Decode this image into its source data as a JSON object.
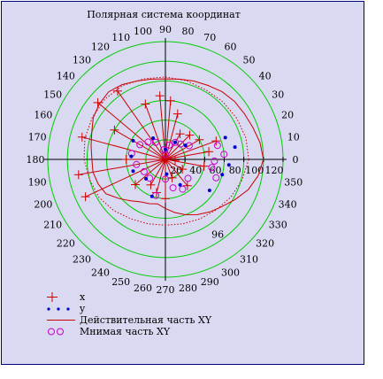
{
  "chart_data": {
    "type": "polar",
    "title": "Полярная система координат",
    "angle_ticks_deg": [
      "0",
      "10",
      "20",
      "30",
      "40",
      "50",
      "60",
      "70",
      "80",
      "90",
      "100",
      "110",
      "120",
      "130",
      "140",
      "150",
      "160",
      "170",
      "180",
      "190",
      "200",
      "210",
      "220",
      "230",
      "240",
      "250",
      "260",
      "270",
      "280",
      "290",
      "300",
      "310",
      "320",
      "330",
      "340",
      "350"
    ],
    "radial_tick_labels": [
      "20",
      "40",
      "60",
      "80",
      "100",
      "120"
    ],
    "radial_max": 120,
    "grid_circles": [
      20,
      40,
      60,
      80,
      100,
      120
    ],
    "grid_color": "#00cc00",
    "extra_label": {
      "text": "96",
      "angle": 305,
      "r": 93
    },
    "series": [
      {
        "name": "x",
        "marker": "plus",
        "color": "#cc0000",
        "points": [
          [
            0,
            0
          ],
          [
            10,
            45
          ],
          [
            20,
            55
          ],
          [
            30,
            40
          ],
          [
            45,
            35
          ],
          [
            60,
            30
          ],
          [
            75,
            48
          ],
          [
            85,
            60
          ],
          [
            95,
            65
          ],
          [
            110,
            60
          ],
          [
            125,
            85
          ],
          [
            140,
            90
          ],
          [
            150,
            60
          ],
          [
            165,
            88
          ],
          [
            180,
            40
          ],
          [
            190,
            90
          ],
          [
            205,
            90
          ],
          [
            220,
            40
          ],
          [
            240,
            30
          ],
          [
            255,
            35
          ],
          [
            270,
            40
          ],
          [
            290,
            20
          ],
          [
            310,
            35
          ],
          [
            330,
            20
          ],
          [
            350,
            40
          ],
          [
            355,
            10
          ]
        ]
      },
      {
        "name": "y",
        "marker": "dot",
        "color": "#0000cc",
        "points": [
          [
            10,
            72
          ],
          [
            20,
            65
          ],
          [
            35,
            25
          ],
          [
            60,
            20
          ],
          [
            90,
            10
          ],
          [
            120,
            25
          ],
          [
            150,
            38
          ],
          [
            175,
            35
          ],
          [
            200,
            35
          ],
          [
            225,
            28
          ],
          [
            250,
            40
          ],
          [
            275,
            15
          ],
          [
            300,
            30
          ],
          [
            325,
            55
          ],
          [
            345,
            60
          ],
          [
            355,
            65
          ]
        ]
      },
      {
        "name": "Действительная часть XY",
        "marker": "line",
        "color": "#cc0000",
        "points": [
          [
            0,
            100
          ],
          [
            10,
            98
          ],
          [
            20,
            95
          ],
          [
            30,
            93
          ],
          [
            40,
            92
          ],
          [
            50,
            90
          ],
          [
            60,
            87
          ],
          [
            70,
            85
          ],
          [
            80,
            83
          ],
          [
            90,
            82
          ],
          [
            100,
            83
          ],
          [
            110,
            85
          ],
          [
            120,
            88
          ],
          [
            130,
            90
          ],
          [
            140,
            88
          ],
          [
            150,
            85
          ],
          [
            160,
            80
          ],
          [
            170,
            77
          ],
          [
            180,
            75
          ],
          [
            190,
            75
          ],
          [
            200,
            73
          ],
          [
            210,
            70
          ],
          [
            220,
            62
          ],
          [
            230,
            55
          ],
          [
            240,
            50
          ],
          [
            250,
            48
          ],
          [
            260,
            46
          ],
          [
            270,
            50
          ],
          [
            280,
            55
          ],
          [
            290,
            60
          ],
          [
            300,
            65
          ],
          [
            310,
            70
          ],
          [
            320,
            75
          ],
          [
            330,
            82
          ],
          [
            340,
            90
          ],
          [
            350,
            96
          ],
          [
            360,
            100
          ]
        ]
      },
      {
        "name": "Мнимая часть XY",
        "marker": "circle",
        "color": "#cc00cc",
        "points": [
          [
            5,
            60
          ],
          [
            15,
            55
          ],
          [
            30,
            28
          ],
          [
            45,
            22
          ],
          [
            60,
            20
          ],
          [
            75,
            15
          ],
          [
            90,
            5
          ],
          [
            100,
            10
          ],
          [
            120,
            20
          ],
          [
            135,
            25
          ],
          [
            150,
            30
          ],
          [
            170,
            35
          ],
          [
            190,
            30
          ],
          [
            210,
            25
          ],
          [
            230,
            25
          ],
          [
            255,
            38
          ],
          [
            270,
            20
          ],
          [
            285,
            30
          ],
          [
            300,
            35
          ],
          [
            320,
            30
          ],
          [
            340,
            55
          ],
          [
            350,
            48
          ],
          [
            358,
            50
          ]
        ]
      }
    ],
    "dotted_curve": {
      "color": "#cc0000",
      "points": [
        [
          0,
          85
        ],
        [
          15,
          85
        ],
        [
          30,
          84
        ],
        [
          45,
          83
        ],
        [
          60,
          82
        ],
        [
          75,
          83
        ],
        [
          90,
          84
        ],
        [
          105,
          85
        ],
        [
          120,
          87
        ],
        [
          135,
          87
        ],
        [
          150,
          86
        ],
        [
          165,
          85
        ],
        [
          180,
          83
        ],
        [
          195,
          80
        ],
        [
          210,
          78
        ],
        [
          225,
          74
        ],
        [
          240,
          70
        ],
        [
          255,
          68
        ],
        [
          270,
          67
        ],
        [
          285,
          68
        ],
        [
          300,
          70
        ],
        [
          315,
          73
        ],
        [
          330,
          77
        ],
        [
          345,
          81
        ],
        [
          360,
          85
        ]
      ]
    }
  }
}
